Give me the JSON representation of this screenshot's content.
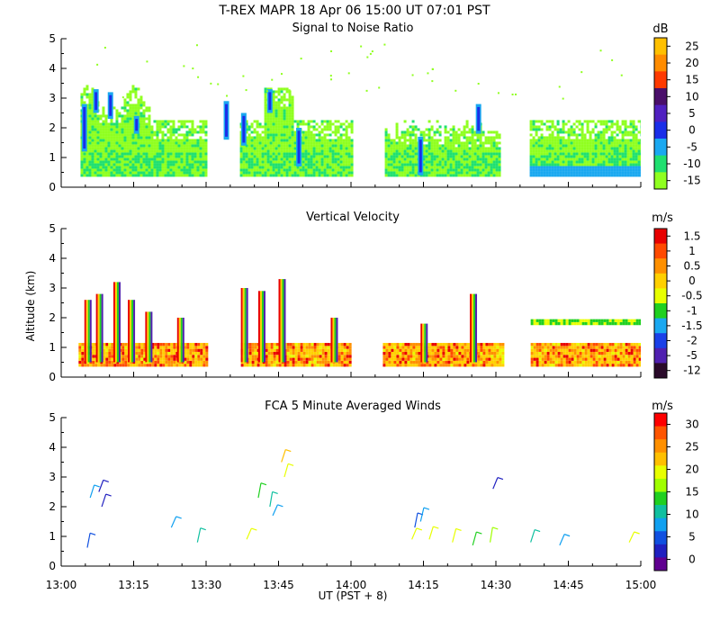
{
  "figure": {
    "title": "T-REX   MAPR 18 Apr 06   15:00 UT   07:01   PST",
    "xlabel": "UT  (PST + 8)",
    "ylabel": "Altitude  (km)"
  },
  "chart_data": [
    {
      "type": "heatmap",
      "title": "Signal to Noise Ratio",
      "unit": "dB",
      "x_ticks": [
        "13:00",
        "13:15",
        "13:30",
        "13:45",
        "14:00",
        "14:15",
        "14:30",
        "14:45",
        "15:00"
      ],
      "y_ticks": [
        "0",
        "1",
        "2",
        "3",
        "4",
        "5"
      ],
      "ylim": [
        0,
        5
      ],
      "colorbar": {
        "labels": [
          "25",
          "20",
          "15",
          "10",
          "5",
          "0",
          "-5",
          "-10",
          "-15"
        ],
        "colors": [
          "#ffc000",
          "#ff8c00",
          "#ff3a00",
          "#4a0f6a",
          "#5020c0",
          "#1a2ee8",
          "#1aa8f0",
          "#20e070",
          "#90ff20"
        ]
      },
      "segments": [
        {
          "start": "13:04",
          "end": "13:30"
        },
        {
          "start": "13:37",
          "end": "14:00"
        },
        {
          "start": "14:07",
          "end": "14:31"
        },
        {
          "start": "14:37",
          "end": "15:00"
        }
      ]
    },
    {
      "type": "heatmap",
      "title": "Vertical Velocity",
      "unit": "m/s",
      "x_ticks": [
        "13:00",
        "13:15",
        "13:30",
        "13:45",
        "14:00",
        "14:15",
        "14:30",
        "14:45",
        "15:00"
      ],
      "y_ticks": [
        "0",
        "1",
        "2",
        "3",
        "4",
        "5"
      ],
      "ylim": [
        0,
        5
      ],
      "colorbar": {
        "labels": [
          "1.5",
          "1",
          "0.5",
          "0",
          "-0.5",
          "-1",
          "-1.5",
          "-2",
          "-5",
          "-12"
        ],
        "colors": [
          "#e80000",
          "#ff4a00",
          "#ff9000",
          "#ffd000",
          "#e8ff00",
          "#20d020",
          "#1aa8f0",
          "#1a40e8",
          "#5020b0",
          "#2a0a2a"
        ]
      }
    },
    {
      "type": "scatter",
      "title": "FCA 5 Minute Averaged Winds",
      "unit": "m/s",
      "x_ticks": [
        "13:00",
        "13:15",
        "13:30",
        "13:45",
        "14:00",
        "14:15",
        "14:30",
        "14:45",
        "15:00"
      ],
      "y_ticks": [
        "0",
        "1",
        "2",
        "3",
        "4",
        "5"
      ],
      "ylim": [
        0,
        5
      ],
      "colorbar": {
        "labels": [
          "30",
          "25",
          "20",
          "15",
          "10",
          "5",
          "0"
        ],
        "colors": [
          "#ff0000",
          "#ff5500",
          "#ff9000",
          "#ffc000",
          "#e8ff00",
          "#a0ff00",
          "#20d020",
          "#10c0a0",
          "#10a0f0",
          "#1050e0",
          "#2020c0",
          "#600090"
        ]
      },
      "barbs": [
        {
          "t": 13.09,
          "z": 0.62,
          "s": 5
        },
        {
          "t": 13.1,
          "z": 2.3,
          "s": 8
        },
        {
          "t": 13.13,
          "z": 2.5,
          "s": 4
        },
        {
          "t": 13.14,
          "z": 2.0,
          "s": 3
        },
        {
          "t": 13.38,
          "z": 1.3,
          "s": 7
        },
        {
          "t": 13.47,
          "z": 0.8,
          "s": 12
        },
        {
          "t": 13.64,
          "z": 0.9,
          "s": 18
        },
        {
          "t": 13.68,
          "z": 2.3,
          "s": 14
        },
        {
          "t": 13.72,
          "z": 2.0,
          "s": 10
        },
        {
          "t": 13.73,
          "z": 1.7,
          "s": 7
        },
        {
          "t": 13.76,
          "z": 3.5,
          "s": 22
        },
        {
          "t": 13.77,
          "z": 3.0,
          "s": 19
        },
        {
          "t": 14.21,
          "z": 0.9,
          "s": 19
        },
        {
          "t": 14.22,
          "z": 1.3,
          "s": 6
        },
        {
          "t": 14.24,
          "z": 1.5,
          "s": 9
        },
        {
          "t": 14.27,
          "z": 0.9,
          "s": 18
        },
        {
          "t": 14.35,
          "z": 0.8,
          "s": 18
        },
        {
          "t": 14.42,
          "z": 0.7,
          "s": 14
        },
        {
          "t": 14.48,
          "z": 0.8,
          "s": 16
        },
        {
          "t": 14.49,
          "z": 2.6,
          "s": 4
        },
        {
          "t": 14.62,
          "z": 0.8,
          "s": 11
        },
        {
          "t": 14.72,
          "z": 0.7,
          "s": 7
        },
        {
          "t": 14.96,
          "z": 0.8,
          "s": 20
        }
      ]
    }
  ]
}
